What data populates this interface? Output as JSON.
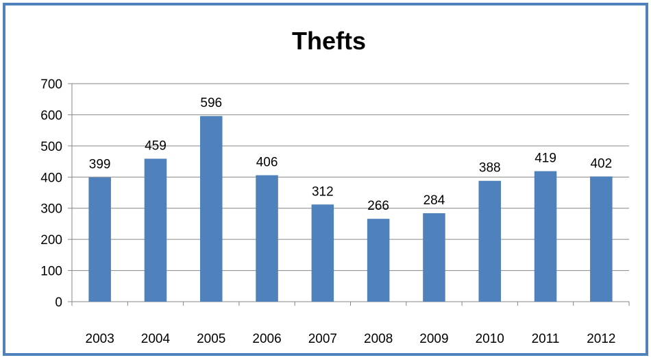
{
  "chart_data": {
    "type": "bar",
    "title": "Thefts",
    "xlabel": "",
    "ylabel": "",
    "categories": [
      "2003",
      "2004",
      "2005",
      "2006",
      "2007",
      "2008",
      "2009",
      "2010",
      "2011",
      "2012"
    ],
    "values": [
      399,
      459,
      596,
      406,
      312,
      266,
      284,
      388,
      419,
      402
    ],
    "ylim": [
      0,
      700
    ],
    "yticks": [
      0,
      100,
      200,
      300,
      400,
      500,
      600,
      700
    ],
    "grid": true,
    "legend": "none",
    "bar_color": "#4f81bd",
    "border_color": "#4f81bd",
    "grid_color": "#868686"
  }
}
